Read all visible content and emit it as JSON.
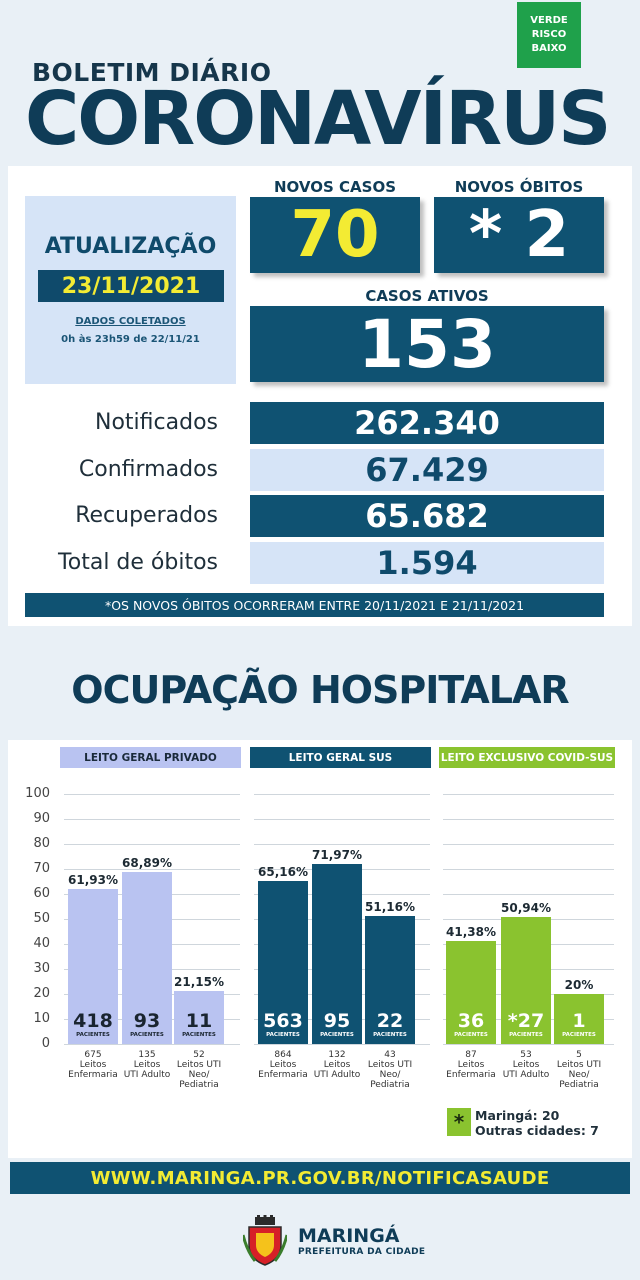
{
  "header": {
    "risk_badge": [
      "VERDE",
      "RISCO",
      "BAIXO"
    ],
    "bulletin_label": "BOLETIM DIÁRIO",
    "title": "CORONAVÍRUS"
  },
  "update": {
    "title": "ATUALIZAÇÃO",
    "date": "23/11/2021",
    "note_line1": "DADOS COLETADOS",
    "note_line2": "0h às 23h59 de 22/11/21"
  },
  "kpis": {
    "new_cases_label": "NOVOS CASOS",
    "new_cases_value": "70",
    "new_deaths_label": "NOVOS ÓBITOS",
    "new_deaths_value": "* 2",
    "active_label": "CASOS ATIVOS",
    "active_value": "153"
  },
  "stats": [
    {
      "label": "Notificados",
      "value": "262.340"
    },
    {
      "label": "Confirmados",
      "value": "67.429"
    },
    {
      "label": "Recuperados",
      "value": "65.682"
    },
    {
      "label": "Total de óbitos",
      "value": "1.594"
    }
  ],
  "deaths_note": "*OS NOVOS ÓBITOS OCORRERAM ENTRE 20/11/2021 E 21/11/2021",
  "hospital_title": "OCUPAÇÃO HOSPITALAR",
  "chart_data": {
    "type": "bar",
    "ylim": [
      0,
      100
    ],
    "yticks": [
      "100",
      "90",
      "80",
      "70",
      "60",
      "50",
      "40",
      "30",
      "20",
      "10",
      "0"
    ],
    "patients_label": "PACIENTES",
    "groups": [
      {
        "name": "LEITO GERAL PRIVADO",
        "color": "#b9c3f1",
        "head_text_color": "#1a2a3a",
        "bars": [
          {
            "pct": 61.93,
            "pct_label": "61,93%",
            "patients": "418",
            "beds_lines": [
              "675",
              "Leitos",
              "Enfermaria"
            ]
          },
          {
            "pct": 68.89,
            "pct_label": "68,89%",
            "patients": "93",
            "beds_lines": [
              "135",
              "Leitos",
              "UTI Adulto"
            ]
          },
          {
            "pct": 21.15,
            "pct_label": "21,15%",
            "patients": "11",
            "beds_lines": [
              "52",
              "Leitos UTI",
              "Neo/",
              "Pediatria"
            ]
          }
        ]
      },
      {
        "name": "LEITO GERAL SUS",
        "color": "#0f5272",
        "head_text_color": "#ffffff",
        "bars": [
          {
            "pct": 65.16,
            "pct_label": "65,16%",
            "patients": "563",
            "beds_lines": [
              "864",
              "Leitos",
              "Enfermaria"
            ]
          },
          {
            "pct": 71.97,
            "pct_label": "71,97%",
            "patients": "95",
            "beds_lines": [
              "132",
              "Leitos",
              "UTI Adulto"
            ]
          },
          {
            "pct": 51.16,
            "pct_label": "51,16%",
            "patients": "22",
            "beds_lines": [
              "43",
              "Leitos UTI",
              "Neo/",
              "Pediatria"
            ]
          }
        ]
      },
      {
        "name": "LEITO EXCLUSIVO COVID-SUS",
        "color": "#8ac32f",
        "head_text_color": "#ffffff",
        "bars": [
          {
            "pct": 41.38,
            "pct_label": "41,38%",
            "patients": "36",
            "beds_lines": [
              "87",
              "Leitos",
              "Enfermaria"
            ]
          },
          {
            "pct": 50.94,
            "pct_label": "50,94%",
            "patients": "*27",
            "beds_lines": [
              "53",
              "Leitos",
              "UTI Adulto"
            ]
          },
          {
            "pct": 20,
            "pct_label": "20%",
            "patients": "1",
            "beds_lines": [
              "5",
              "Leitos UTI",
              "Neo/",
              "Pediatria"
            ]
          }
        ]
      }
    ]
  },
  "legend": {
    "symbol": "*",
    "line1": "Maringá: 20",
    "line2": "Outras cidades: 7"
  },
  "url": "WWW.MARINGA.PR.GOV.BR/NOTIFICASAUDE",
  "footer": {
    "name": "MARINGÁ",
    "sub": "PREFEITURA DA CIDADE"
  }
}
